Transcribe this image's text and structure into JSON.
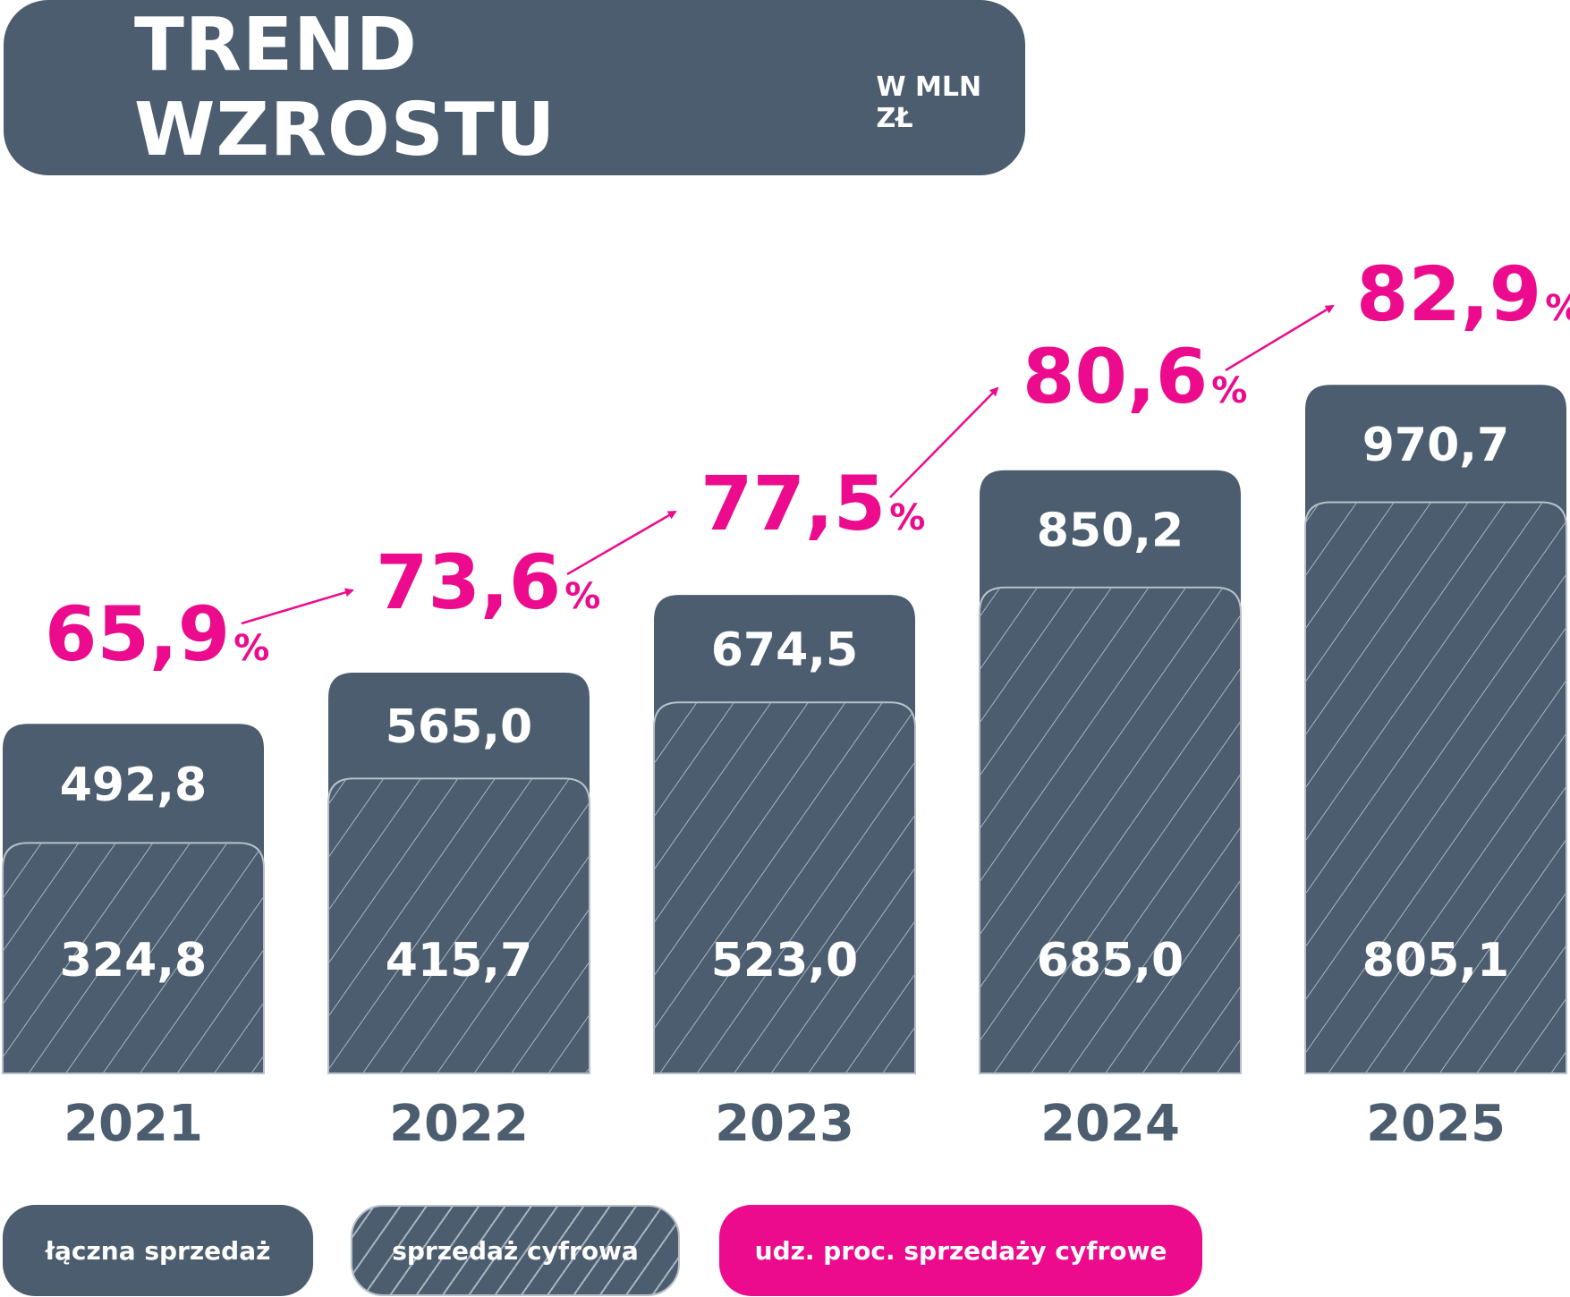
{
  "header": {
    "title": "TREND WZROSTU",
    "unit": "W MLN ZŁ"
  },
  "legend": {
    "total_label": "łączna sprzedaż",
    "digital_label": "sprzedaż cyfrowa",
    "share_label": "udz. proc. sprzedaży cyfrowe"
  },
  "colors": {
    "bar": "#4b5d6e",
    "hatch": "#aab5c0",
    "accent": "#ec0b8c",
    "year_text": "#4b5d6e"
  },
  "chart_data": {
    "type": "bar",
    "title": "TREND WZROSTU",
    "subtitle": "W MLN ZŁ",
    "categories": [
      "2021",
      "2022",
      "2023",
      "2024",
      "2025"
    ],
    "series": [
      {
        "name": "łączna sprzedaż",
        "values": [
          492.8,
          565.0,
          674.5,
          850.2,
          970.7
        ],
        "labels": [
          "492,8",
          "565,0",
          "674,5",
          "850,2",
          "970,7"
        ]
      },
      {
        "name": "sprzedaż cyfrowa",
        "values": [
          324.8,
          415.7,
          523.0,
          685.0,
          805.1
        ],
        "labels": [
          "324,8",
          "415,7",
          "523,0",
          "685,0",
          "805,1"
        ]
      },
      {
        "name": "udz. proc. sprzedaży cyfrowe",
        "values": [
          65.9,
          73.6,
          77.5,
          80.6,
          82.9
        ],
        "labels": [
          "65,9",
          "73,6",
          "77,5",
          "80,6",
          "82,9"
        ],
        "unit": "%"
      }
    ]
  }
}
